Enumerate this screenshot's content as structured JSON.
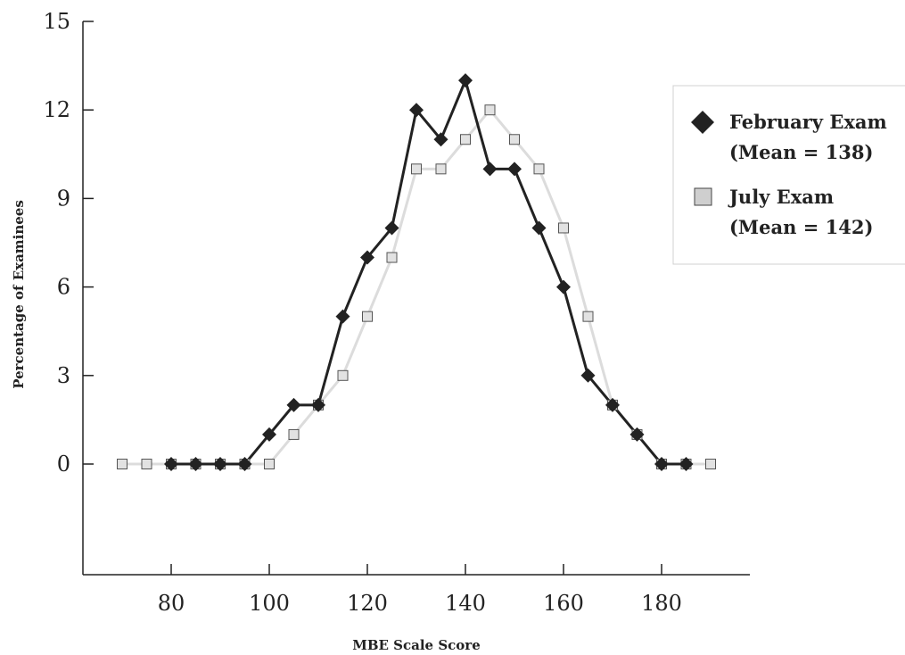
{
  "chart_data": {
    "type": "line",
    "xlabel": "MBE Scale Score",
    "ylabel": "Percentage of Examinees",
    "xlim": [
      62,
      198
    ],
    "ylim": [
      -3.75,
      15
    ],
    "x_ticks": [
      80,
      100,
      120,
      140,
      160,
      180
    ],
    "y_ticks": [
      0,
      3,
      6,
      9,
      12,
      15
    ],
    "grid": false,
    "legend_position": "right",
    "series": [
      {
        "name_line1": "February Exam",
        "name_line2": "(Mean = 138)",
        "marker": "diamond",
        "color": "#222222",
        "x": [
          80,
          85,
          90,
          95,
          100,
          105,
          110,
          115,
          120,
          125,
          130,
          135,
          140,
          145,
          150,
          155,
          160,
          165,
          170,
          175,
          180,
          185
        ],
        "values": [
          0,
          0,
          0,
          0,
          1,
          2,
          2,
          5,
          7,
          8,
          12,
          11,
          13,
          10,
          10,
          8,
          6,
          3,
          2,
          1,
          0,
          0
        ]
      },
      {
        "name_line1": "July Exam",
        "name_line2": "(Mean = 142)",
        "marker": "square",
        "color": "#dcdcdc",
        "x": [
          70,
          75,
          80,
          85,
          90,
          95,
          100,
          105,
          110,
          115,
          120,
          125,
          130,
          135,
          140,
          145,
          150,
          155,
          160,
          165,
          170,
          175,
          180,
          185,
          190
        ],
        "values": [
          0,
          0,
          0,
          0,
          0,
          0,
          0,
          1,
          2,
          3,
          5,
          7,
          10,
          10,
          11,
          12,
          11,
          10,
          8,
          5,
          2,
          1,
          0,
          0,
          0
        ]
      }
    ]
  }
}
